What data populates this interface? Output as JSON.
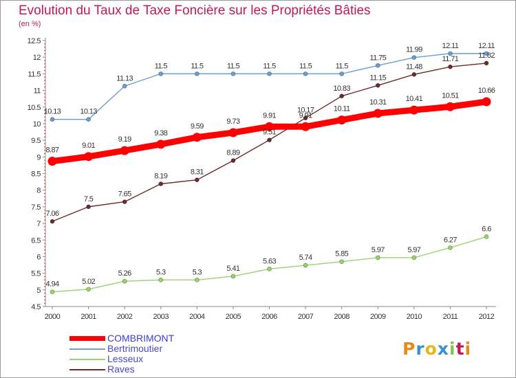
{
  "header": {
    "title": "Evolution du Taux de Taxe Foncière sur les Propriétés Bâties",
    "unit": "(en %)"
  },
  "logo": {
    "text": "Proxiti"
  },
  "chart_data": {
    "type": "line",
    "x": [
      "2000",
      "2001",
      "2002",
      "2003",
      "2004",
      "2005",
      "2006",
      "2007",
      "2008",
      "2009",
      "2010",
      "2011",
      "2012"
    ],
    "ylim": [
      4.5,
      12.5
    ],
    "yticks": [
      "4.5",
      "5",
      "5.5",
      "6",
      "6.5",
      "7",
      "7.5",
      "8",
      "8.5",
      "9",
      "9.5",
      "10",
      "10.5",
      "11",
      "11.5",
      "12",
      "12.5"
    ],
    "grid": false,
    "legend_position": "bottom-left",
    "series": [
      {
        "name": "COMBRIMONT",
        "color": "#ff0000",
        "values": [
          8.87,
          9.01,
          9.19,
          9.38,
          9.59,
          9.73,
          9.91,
          9.91,
          10.11,
          10.31,
          10.41,
          10.51,
          10.66
        ],
        "labels": [
          "8.87",
          "9.01",
          "9.19",
          "9.38",
          "9.59",
          "9.73",
          "9.91",
          "9.91",
          "10.11",
          "10.31",
          "10.41",
          "10.51",
          "10.66"
        ]
      },
      {
        "name": "Bertrimoutier",
        "color": "#6a9ecf",
        "values": [
          10.13,
          10.13,
          11.13,
          11.5,
          11.5,
          11.5,
          11.5,
          11.5,
          11.5,
          11.75,
          11.99,
          12.11,
          12.11
        ],
        "labels": [
          "10.13",
          "10.13",
          "11.13",
          "11.5",
          "11.5",
          "11.5",
          "11.5",
          "11.5",
          "11.5",
          "11.75",
          "11.99",
          "12.11",
          "12.11"
        ]
      },
      {
        "name": "Lesseux",
        "color": "#99d36a",
        "values": [
          4.94,
          5.02,
          5.26,
          5.3,
          5.3,
          5.41,
          5.63,
          5.74,
          5.85,
          5.97,
          5.97,
          6.27,
          6.6
        ],
        "labels": [
          "4.94",
          "5.02",
          "5.26",
          "5.3",
          "5.3",
          "5.41",
          "5.63",
          "5.74",
          "5.85",
          "5.97",
          "5.97",
          "6.27",
          "6.6"
        ]
      },
      {
        "name": "Raves",
        "color": "#6b2b2b",
        "values": [
          7.06,
          7.5,
          7.65,
          8.19,
          8.31,
          8.89,
          9.51,
          10.17,
          10.83,
          11.15,
          11.48,
          11.71,
          11.82
        ],
        "labels": [
          "7.06",
          "7.5",
          "7.65",
          "8.19",
          "8.31",
          "8.89",
          "9.51",
          "10.17",
          "10.83",
          "11.15",
          "11.48",
          "11.71",
          "11.82"
        ]
      }
    ]
  }
}
